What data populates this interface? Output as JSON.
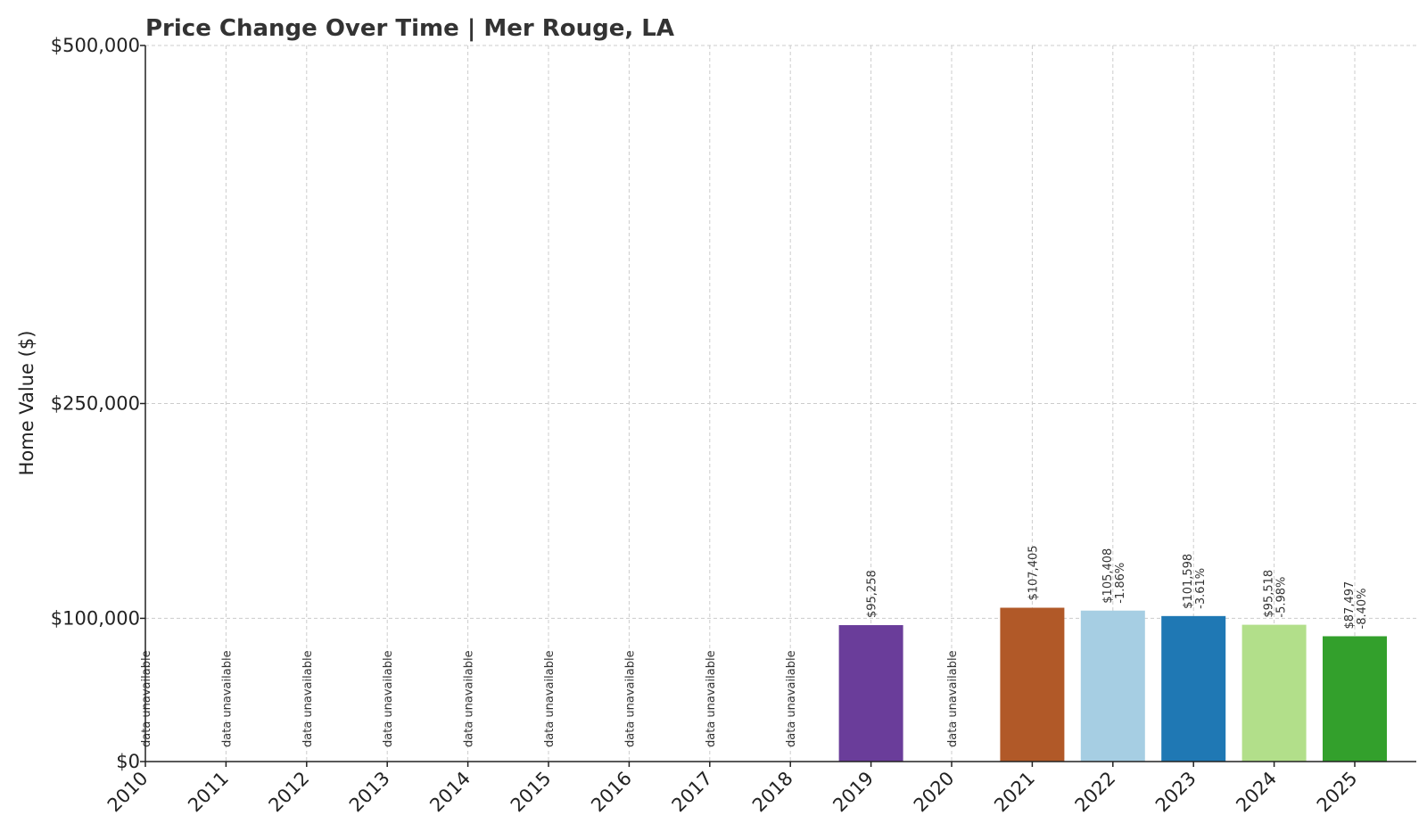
{
  "chart_data": {
    "type": "bar",
    "title": "Price Change Over Time | Mer Rouge, LA",
    "xlabel": "",
    "ylabel": "Home Value ($)",
    "ylim": [
      0,
      500000
    ],
    "yticks": [
      {
        "value": 0,
        "label": "$0"
      },
      {
        "value": 100000,
        "label": "$100,000"
      },
      {
        "value": 250000,
        "label": "$250,000"
      },
      {
        "value": 500000,
        "label": "$500,000"
      }
    ],
    "categories": [
      "2010",
      "2011",
      "2012",
      "2013",
      "2014",
      "2015",
      "2016",
      "2017",
      "2018",
      "2019",
      "2020",
      "2021",
      "2022",
      "2023",
      "2024",
      "2025"
    ],
    "values": [
      null,
      null,
      null,
      null,
      null,
      null,
      null,
      null,
      null,
      95258,
      null,
      107405,
      105408,
      101598,
      95518,
      87497
    ],
    "value_labels": [
      "",
      "",
      "",
      "",
      "",
      "",
      "",
      "",
      "",
      "$95,258",
      "",
      "$107,405",
      "$105,408",
      "$101,598",
      "$95,518",
      "$87,497"
    ],
    "change_labels": [
      "",
      "",
      "",
      "",
      "",
      "",
      "",
      "",
      "",
      "",
      "",
      "",
      "-1.86%",
      "-3.61%",
      "-5.98%",
      "-8.40%"
    ],
    "missing_label": "data unavailable",
    "colors": [
      "#6a3d9a",
      "#6a3d9a",
      "#6a3d9a",
      "#6a3d9a",
      "#6a3d9a",
      "#6a3d9a",
      "#6a3d9a",
      "#6a3d9a",
      "#6a3d9a",
      "#6a3d9a",
      "#6a3d9a",
      "#b15928",
      "#a6cee3",
      "#1f78b4",
      "#b2df8a",
      "#33a02c"
    ],
    "grid": true
  }
}
